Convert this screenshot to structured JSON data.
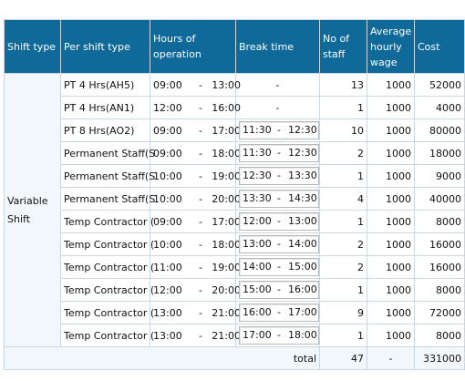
{
  "headers": {
    "shift_type": "Shift type",
    "per_shift_type": "Per shift type",
    "hours_line1": "Hours of",
    "hours_line2": "operation",
    "break_time": "Break time",
    "no_of_line1": "No of",
    "no_of_line2": "staff",
    "avg_line1": "Average",
    "avg_line2": "hourly",
    "avg_line3": "wage",
    "cost": "Cost"
  },
  "shift_group": {
    "line1": "Variable",
    "line2": "Shift"
  },
  "rows": [
    {
      "name": "PT 4 Hrs(AH5)",
      "start": "09:00",
      "sep": "-",
      "end": "13:00",
      "break": null,
      "break_dash": "-",
      "staff": "13",
      "wage": "1000",
      "cost": "52000"
    },
    {
      "name": "PT 4 Hrs(AN1)",
      "start": "12:00",
      "sep": "-",
      "end": "16:00",
      "break": null,
      "break_dash": "-",
      "staff": "1",
      "wage": "1000",
      "cost": "4000"
    },
    {
      "name": "PT 8 Hrs(AO2)",
      "start": "09:00",
      "sep": "-",
      "end": "17:00",
      "break": {
        "start": "11:30",
        "sep": "-",
        "end": "12:30"
      },
      "staff": "10",
      "wage": "1000",
      "cost": "80000"
    },
    {
      "name": "Permanent Staff(S",
      "start": "09:00",
      "sep": "-",
      "end": "18:00",
      "break": {
        "start": "11:30",
        "sep": "-",
        "end": "12:30"
      },
      "staff": "2",
      "wage": "1000",
      "cost": "18000"
    },
    {
      "name": "Permanent Staff(S",
      "start": "10:00",
      "sep": "-",
      "end": "19:00",
      "break": {
        "start": "12:30",
        "sep": "-",
        "end": "13:30"
      },
      "staff": "1",
      "wage": "1000",
      "cost": "9000"
    },
    {
      "name": "Permanent Staff(S",
      "start": "10:00",
      "sep": "-",
      "end": "20:00",
      "break": {
        "start": "13:30",
        "sep": "-",
        "end": "14:30"
      },
      "staff": "4",
      "wage": "1000",
      "cost": "40000"
    },
    {
      "name": "Temp Contractor (",
      "start": "09:00",
      "sep": "-",
      "end": "17:00",
      "break": {
        "start": "12:00",
        "sep": "-",
        "end": "13:00"
      },
      "staff": "1",
      "wage": "1000",
      "cost": "8000"
    },
    {
      "name": "Temp Contractor (",
      "start": "10:00",
      "sep": "-",
      "end": "18:00",
      "break": {
        "start": "13:00",
        "sep": "-",
        "end": "14:00"
      },
      "staff": "2",
      "wage": "1000",
      "cost": "16000"
    },
    {
      "name": "Temp Contractor (",
      "start": "11:00",
      "sep": "-",
      "end": "19:00",
      "break": {
        "start": "14:00",
        "sep": "-",
        "end": "15:00"
      },
      "staff": "2",
      "wage": "1000",
      "cost": "16000"
    },
    {
      "name": "Temp Contractor (",
      "start": "12:00",
      "sep": "-",
      "end": "20:00",
      "break": {
        "start": "15:00",
        "sep": "-",
        "end": "16:00"
      },
      "staff": "1",
      "wage": "1000",
      "cost": "8000"
    },
    {
      "name": "Temp Contractor (",
      "start": "13:00",
      "sep": "-",
      "end": "21:00",
      "break": {
        "start": "16:00",
        "sep": "-",
        "end": "17:00"
      },
      "staff": "9",
      "wage": "1000",
      "cost": "72000"
    },
    {
      "name": "Temp Contractor (",
      "start": "13:00",
      "sep": "-",
      "end": "21:00",
      "break": {
        "start": "17:00",
        "sep": "-",
        "end": "18:00"
      },
      "staff": "1",
      "wage": "1000",
      "cost": "8000"
    }
  ],
  "total": {
    "label": "total",
    "staff": "47",
    "wage": "-",
    "cost": "331000"
  },
  "colors": {
    "header_bg": "#0f6a9a",
    "header_text": "#ffffff",
    "grid": "#c9d7e3",
    "group_bg": "#f2f7fb"
  }
}
